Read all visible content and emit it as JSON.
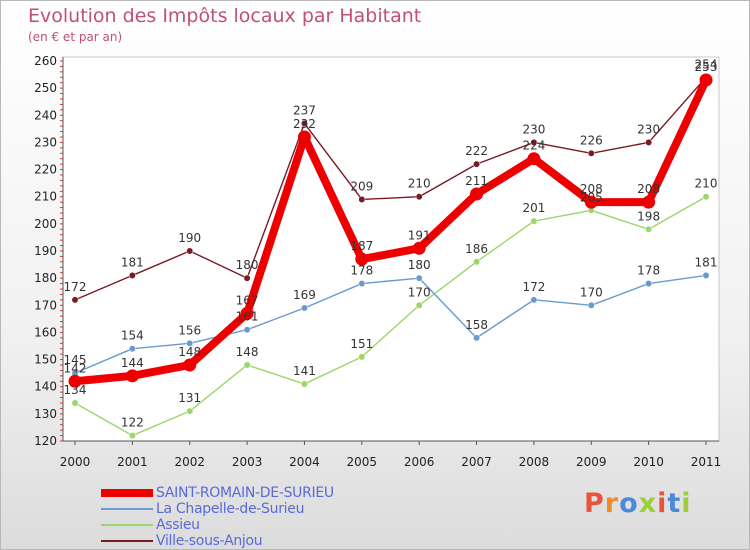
{
  "chart_data": {
    "type": "line",
    "title": "Evolution des Impôts locaux par Habitant",
    "subtitle": "(en € et par an)",
    "x": [
      "2000",
      "2001",
      "2002",
      "2003",
      "2004",
      "2005",
      "2006",
      "2007",
      "2008",
      "2009",
      "2010",
      "2011"
    ],
    "ylim": [
      120,
      260
    ],
    "yticks": [
      120,
      130,
      140,
      150,
      160,
      170,
      180,
      190,
      200,
      210,
      220,
      230,
      240,
      250,
      260
    ],
    "grid": false,
    "legend_position": "bottom-left",
    "series": [
      {
        "name": "Ville-sous-Anjou",
        "color": "#7a1a24",
        "values": [
          172,
          181,
          190,
          180,
          237,
          209,
          210,
          222,
          230,
          226,
          230,
          254
        ]
      },
      {
        "name": "Assieu",
        "color": "#9ad66a",
        "values": [
          134,
          122,
          131,
          148,
          141,
          151,
          170,
          186,
          201,
          205,
          198,
          210
        ]
      },
      {
        "name": "La Chapelle-de-Surieu",
        "color": "#6a9ad0",
        "values": [
          145,
          154,
          156,
          161,
          169,
          178,
          180,
          158,
          172,
          170,
          178,
          181
        ]
      },
      {
        "name": "SAINT-ROMAIN-DE-SURIEU",
        "color": "#ee0000",
        "values": [
          142,
          144,
          148,
          167,
          232,
          187,
          191,
          211,
          224,
          208,
          208,
          253
        ]
      }
    ]
  },
  "legend": {
    "items": [
      {
        "label": "SAINT-ROMAIN-DE-SURIEU",
        "color": "#ee0000"
      },
      {
        "label": "La Chapelle-de-Surieu",
        "color": "#6a9ad0"
      },
      {
        "label": "Assieu",
        "color": "#9ad66a"
      },
      {
        "label": "Ville-sous-Anjou",
        "color": "#7a1a24"
      }
    ]
  },
  "brand": {
    "text": "Proxiti"
  }
}
